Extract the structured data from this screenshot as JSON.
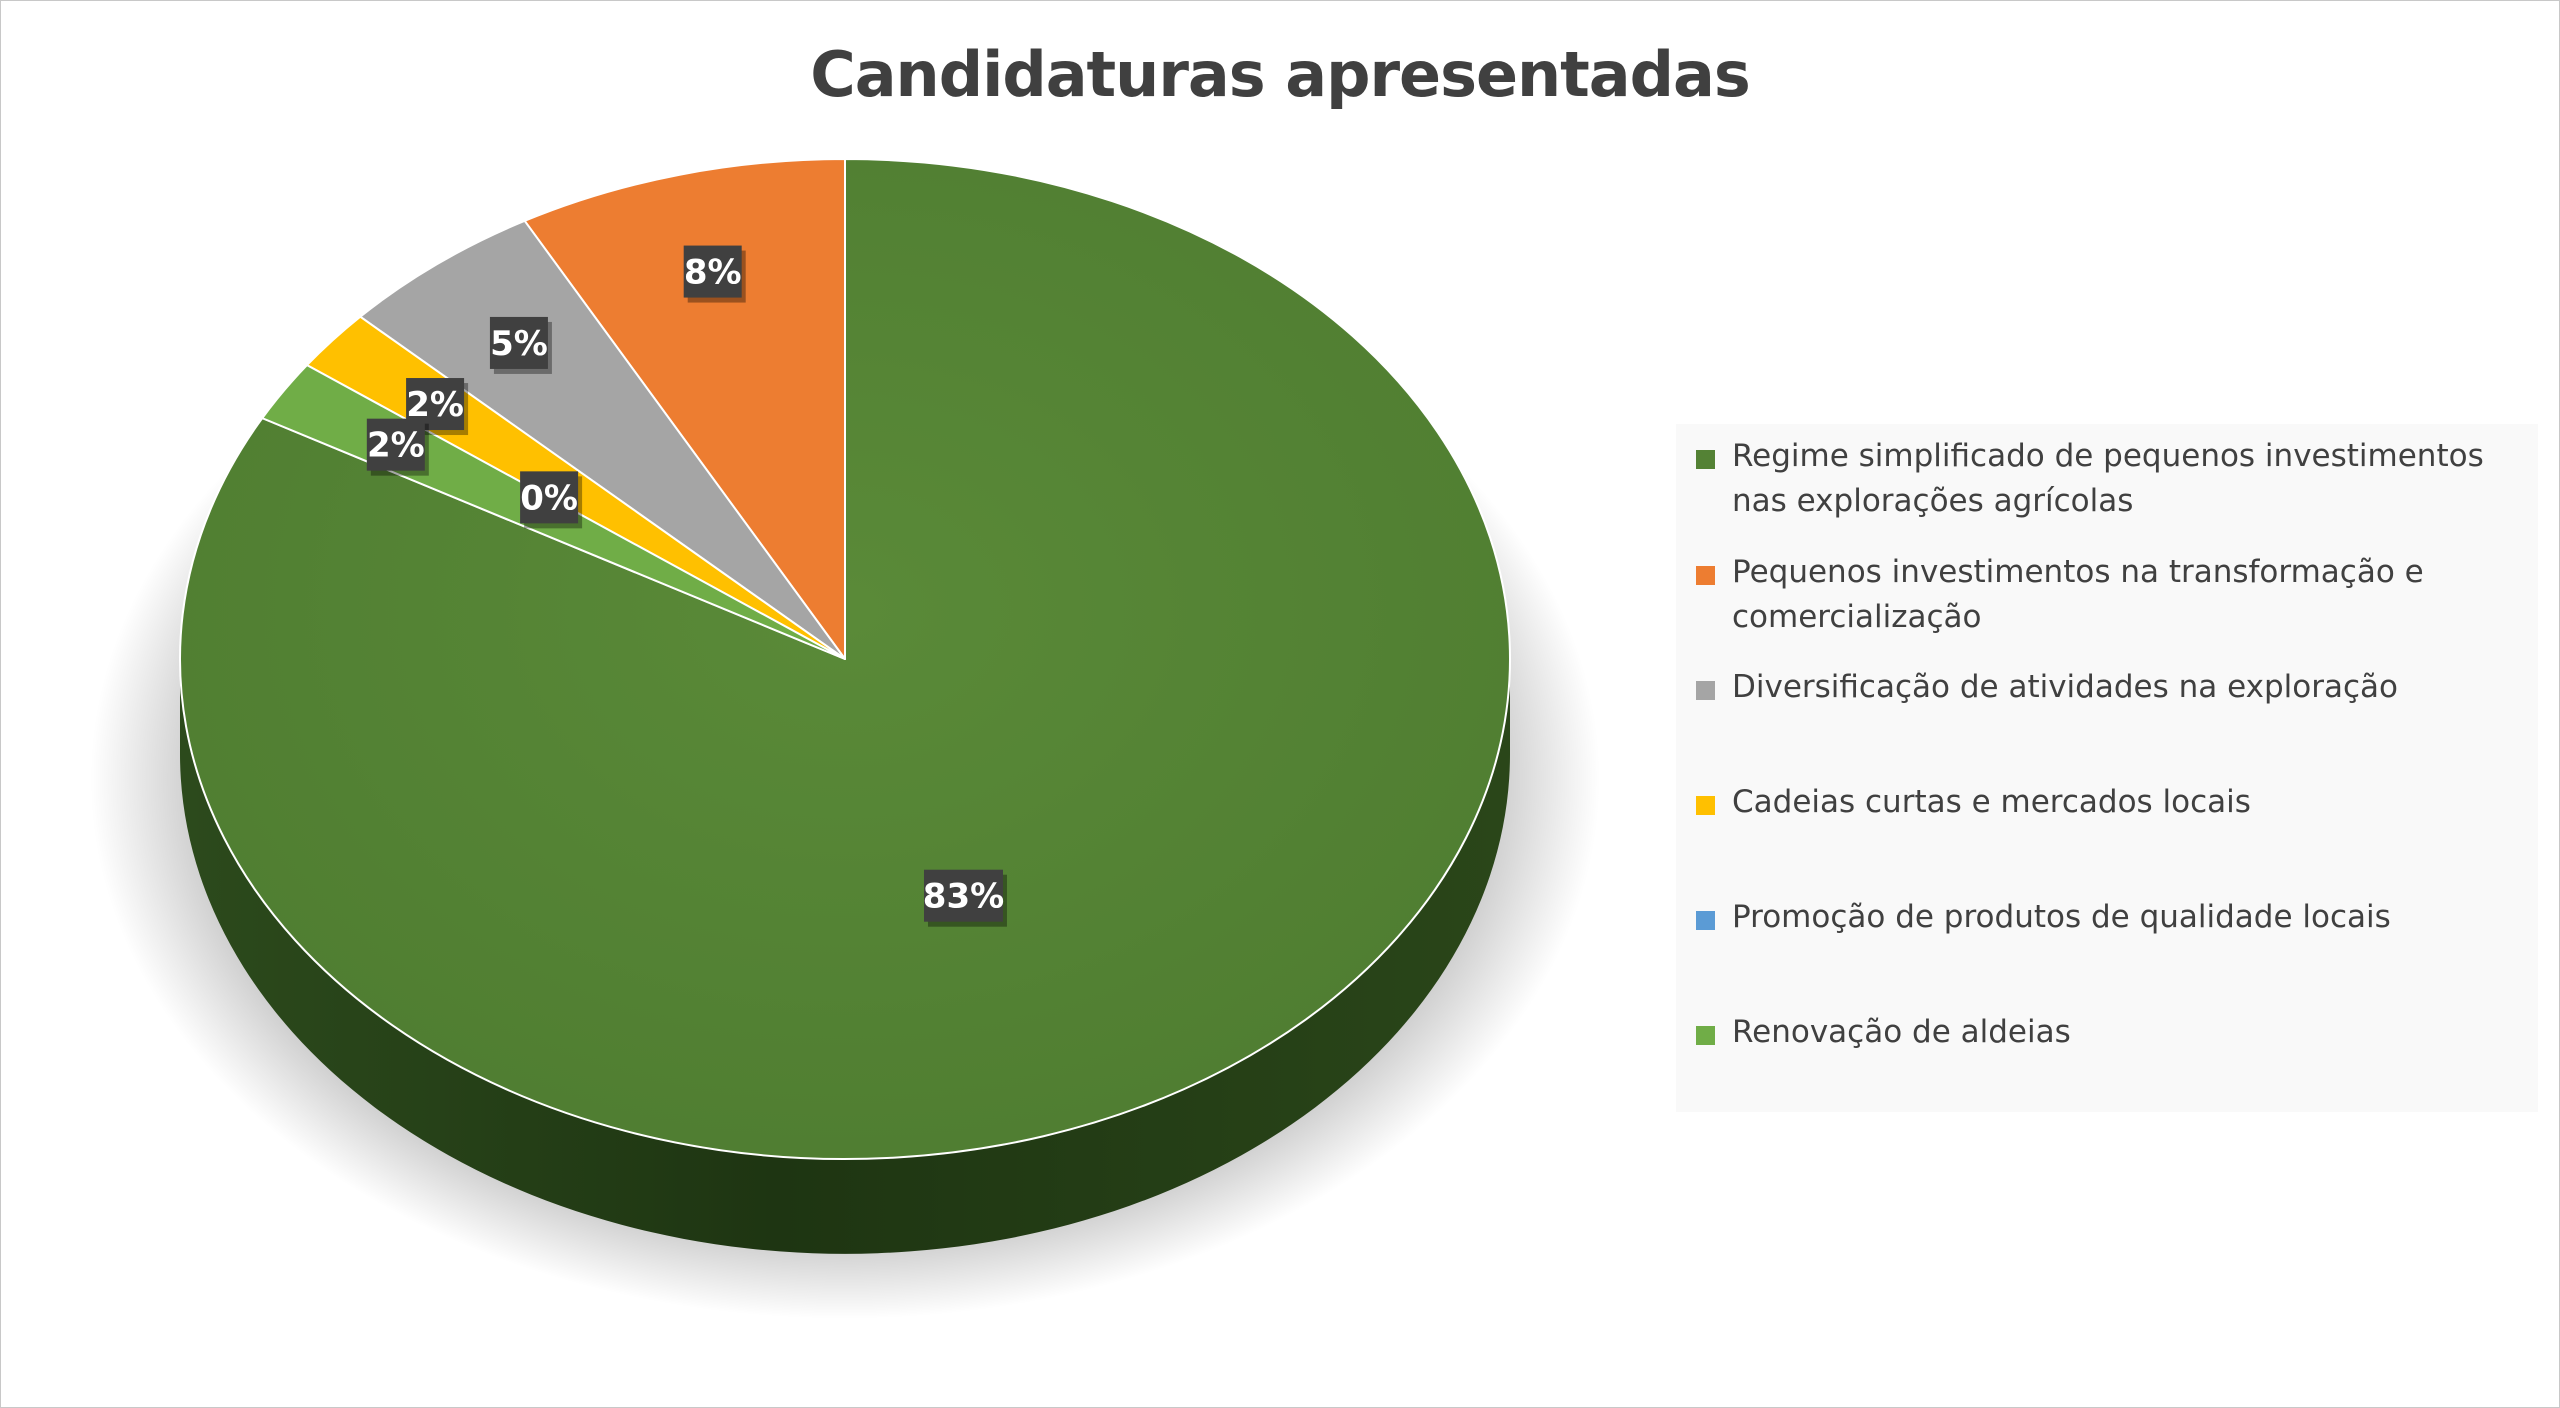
{
  "chart_data": {
    "type": "pie",
    "title": "Candidaturas apresentadas",
    "categories": [
      "Regime simplificado de pequenos investimentos nas explorações agrícolas",
      "Pequenos investimentos na transformação e comercialização",
      "Diversificação de atividades na exploração",
      "Cadeias curtas e mercados locais",
      "Promoção de produtos de qualidade locais",
      "Renovação de aldeias"
    ],
    "values": [
      83,
      8,
      5,
      2,
      0,
      2
    ],
    "data_labels": [
      "83%",
      "8%",
      "5%",
      "2%",
      "0%",
      "2%"
    ],
    "colors": [
      "#548235",
      "#ed7d31",
      "#a5a5a5",
      "#ffc000",
      "#5b9bd5",
      "#70ad47"
    ],
    "legend_position": "right",
    "style": "3d"
  }
}
